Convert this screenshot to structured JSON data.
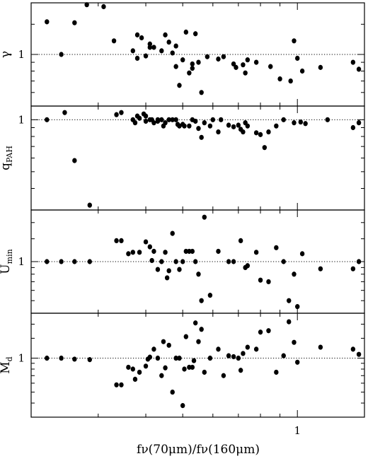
{
  "chart_data": {
    "type": "scatter",
    "x_scale": "log",
    "xlabel": "fν(70μm)/fν(160μm)",
    "xlim": [
      0.2,
      1.5
    ],
    "x_tick_labels": [
      {
        "value": 1,
        "label": "1"
      }
    ],
    "x_minor_ticks": [
      0.2,
      0.3,
      0.4,
      0.5,
      0.6,
      0.7,
      0.8,
      0.9,
      1,
      1.5
    ],
    "reference_line_y": 1,
    "panels": [
      {
        "id": "gamma",
        "ylabel": "γ",
        "ylabel_main": "γ",
        "ylabel_sub": "",
        "y_scale": "log",
        "ylim": [
          0.5,
          2.0
        ],
        "y_minor_ticks": [
          0.6,
          0.7,
          0.8,
          0.9,
          1.5
        ],
        "y_tick_labels": [
          {
            "value": 1,
            "label": "1"
          }
        ],
        "points": [
          [
            0.22,
            1.55
          ],
          [
            0.24,
            1.0
          ],
          [
            0.26,
            1.53
          ],
          [
            0.28,
            1.95
          ],
          [
            0.31,
            1.9
          ],
          [
            0.33,
            1.2
          ],
          [
            0.37,
            1.05
          ],
          [
            0.38,
            0.95
          ],
          [
            0.38,
            1.3
          ],
          [
            0.39,
            1.25
          ],
          [
            0.4,
            0.98
          ],
          [
            0.41,
            1.15
          ],
          [
            0.41,
            1.1
          ],
          [
            0.42,
            1.1
          ],
          [
            0.44,
            1.05
          ],
          [
            0.45,
            1.3
          ],
          [
            0.46,
            1.18
          ],
          [
            0.47,
            1.02
          ],
          [
            0.48,
            1.12
          ],
          [
            0.48,
            0.85
          ],
          [
            0.49,
            0.66
          ],
          [
            0.5,
            0.93
          ],
          [
            0.51,
            1.35
          ],
          [
            0.52,
            0.78
          ],
          [
            0.53,
            0.88
          ],
          [
            0.53,
            0.83
          ],
          [
            0.54,
            1.32
          ],
          [
            0.55,
            0.9
          ],
          [
            0.56,
            0.6
          ],
          [
            0.58,
            0.97
          ],
          [
            0.62,
            0.94
          ],
          [
            0.64,
            0.97
          ],
          [
            0.68,
            0.88
          ],
          [
            0.69,
            0.84
          ],
          [
            0.72,
            0.87
          ],
          [
            0.73,
            0.78
          ],
          [
            0.74,
            0.93
          ],
          [
            0.78,
            0.9
          ],
          [
            0.85,
            0.85
          ],
          [
            0.9,
            0.72
          ],
          [
            0.96,
            0.7
          ],
          [
            0.98,
            1.2
          ],
          [
            1.0,
            0.95
          ],
          [
            1.03,
            0.8
          ],
          [
            1.15,
            0.84
          ],
          [
            1.4,
            0.9
          ],
          [
            1.45,
            0.82
          ]
        ]
      },
      {
        "id": "qpah",
        "ylabel": "qPAH",
        "ylabel_main": "q",
        "ylabel_sub": "PAH",
        "y_scale": "log",
        "ylim": [
          0.3,
          1.2
        ],
        "y_minor_ticks": [
          0.4,
          0.5,
          0.6,
          0.7,
          0.8,
          0.9
        ],
        "y_tick_labels": [
          {
            "value": 1,
            "label": "1"
          }
        ],
        "points": [
          [
            0.22,
            1.0
          ],
          [
            0.245,
            1.1
          ],
          [
            0.26,
            0.58
          ],
          [
            0.285,
            0.32
          ],
          [
            0.335,
            1.07
          ],
          [
            0.345,
            1.1
          ],
          [
            0.37,
            1.0
          ],
          [
            0.375,
            0.96
          ],
          [
            0.38,
            1.05
          ],
          [
            0.385,
            1.02
          ],
          [
            0.395,
            1.08
          ],
          [
            0.4,
            1.05
          ],
          [
            0.4,
            0.98
          ],
          [
            0.41,
            1.0
          ],
          [
            0.415,
            1.0
          ],
          [
            0.42,
            0.96
          ],
          [
            0.43,
            1.0
          ],
          [
            0.43,
            0.98
          ],
          [
            0.44,
            1.0
          ],
          [
            0.445,
            0.92
          ],
          [
            0.45,
            0.96
          ],
          [
            0.46,
            1.0
          ],
          [
            0.47,
            1.0
          ],
          [
            0.48,
            1.0
          ],
          [
            0.485,
            0.94
          ],
          [
            0.49,
            0.92
          ],
          [
            0.5,
            0.94
          ],
          [
            0.505,
            0.92
          ],
          [
            0.52,
            0.92
          ],
          [
            0.53,
            1.0
          ],
          [
            0.54,
            0.98
          ],
          [
            0.55,
            0.89
          ],
          [
            0.56,
            0.79
          ],
          [
            0.57,
            0.96
          ],
          [
            0.59,
            0.92
          ],
          [
            0.6,
            1.0
          ],
          [
            0.62,
            0.85
          ],
          [
            0.63,
            1.0
          ],
          [
            0.66,
            0.93
          ],
          [
            0.68,
            0.91
          ],
          [
            0.7,
            0.93
          ],
          [
            0.71,
            0.88
          ],
          [
            0.72,
            0.85
          ],
          [
            0.73,
            0.96
          ],
          [
            0.74,
            0.92
          ],
          [
            0.78,
            0.84
          ],
          [
            0.8,
            0.82
          ],
          [
            0.82,
            0.69
          ],
          [
            0.84,
            0.85
          ],
          [
            0.88,
            0.92
          ],
          [
            0.92,
            1.0
          ],
          [
            0.98,
            0.96
          ],
          [
            1.02,
            0.97
          ],
          [
            1.05,
            0.95
          ],
          [
            1.2,
            1.0
          ],
          [
            1.4,
            0.9
          ],
          [
            1.45,
            0.96
          ]
        ]
      },
      {
        "id": "umin",
        "ylabel": "Umin",
        "ylabel_main": "U",
        "ylabel_sub": "min",
        "y_scale": "log",
        "ylim": [
          0.4,
          2.5
        ],
        "y_minor_ticks": [
          0.5,
          0.6,
          0.7,
          0.8,
          0.9,
          1.5,
          2
        ],
        "y_tick_labels": [
          {
            "value": 1,
            "label": "1"
          }
        ],
        "points": [
          [
            0.22,
            1.0
          ],
          [
            0.24,
            1.0
          ],
          [
            0.26,
            1.0
          ],
          [
            0.285,
            1.0
          ],
          [
            0.335,
            1.45
          ],
          [
            0.345,
            1.45
          ],
          [
            0.36,
            1.15
          ],
          [
            0.37,
            1.18
          ],
          [
            0.385,
            1.18
          ],
          [
            0.4,
            1.42
          ],
          [
            0.41,
            1.3
          ],
          [
            0.415,
            1.02
          ],
          [
            0.42,
            1.2
          ],
          [
            0.43,
            0.87
          ],
          [
            0.44,
            1.0
          ],
          [
            0.45,
            1.18
          ],
          [
            0.455,
            0.75
          ],
          [
            0.46,
            0.85
          ],
          [
            0.47,
            1.65
          ],
          [
            0.48,
            1.0
          ],
          [
            0.49,
            0.87
          ],
          [
            0.5,
            1.0
          ],
          [
            0.51,
            1.2
          ],
          [
            0.52,
            1.2
          ],
          [
            0.53,
            1.2
          ],
          [
            0.54,
            1.0
          ],
          [
            0.55,
            0.8
          ],
          [
            0.56,
            0.5
          ],
          [
            0.57,
            2.2
          ],
          [
            0.59,
            0.55
          ],
          [
            0.62,
            1.2
          ],
          [
            0.66,
            1.0
          ],
          [
            0.68,
            1.0
          ],
          [
            0.71,
            1.45
          ],
          [
            0.73,
            0.9
          ],
          [
            0.74,
            0.93
          ],
          [
            0.78,
            1.18
          ],
          [
            0.8,
            0.72
          ],
          [
            0.84,
            0.7
          ],
          [
            0.88,
            1.28
          ],
          [
            0.92,
            1.0
          ],
          [
            0.95,
            0.5
          ],
          [
            0.98,
            0.8
          ],
          [
            1.0,
            0.45
          ],
          [
            1.03,
            1.15
          ],
          [
            1.15,
            0.88
          ],
          [
            1.4,
            0.88
          ],
          [
            1.45,
            1.0
          ]
        ]
      },
      {
        "id": "md",
        "ylabel": "Md",
        "ylabel_main": "M",
        "ylabel_sub": "d",
        "y_scale": "log",
        "ylim": [
          0.3,
          2.5
        ],
        "y_minor_ticks": [
          0.4,
          0.5,
          0.6,
          0.7,
          0.8,
          0.9,
          1.5,
          2
        ],
        "y_tick_labels": [
          {
            "value": 1,
            "label": "1"
          }
        ],
        "points": [
          [
            0.22,
            1.0
          ],
          [
            0.24,
            1.0
          ],
          [
            0.26,
            0.98
          ],
          [
            0.285,
            0.97
          ],
          [
            0.335,
            0.58
          ],
          [
            0.345,
            0.58
          ],
          [
            0.36,
            0.83
          ],
          [
            0.37,
            0.8
          ],
          [
            0.375,
            0.65
          ],
          [
            0.385,
            0.75
          ],
          [
            0.4,
            0.85
          ],
          [
            0.405,
            0.98
          ],
          [
            0.41,
            1.02
          ],
          [
            0.42,
            1.2
          ],
          [
            0.43,
            1.0
          ],
          [
            0.44,
            0.7
          ],
          [
            0.445,
            1.4
          ],
          [
            0.45,
            0.82
          ],
          [
            0.46,
            1.3
          ],
          [
            0.47,
            0.5
          ],
          [
            0.48,
            1.0
          ],
          [
            0.49,
            1.0
          ],
          [
            0.5,
            0.38
          ],
          [
            0.505,
            0.8
          ],
          [
            0.51,
            1.55
          ],
          [
            0.52,
            0.83
          ],
          [
            0.53,
            0.83
          ],
          [
            0.535,
            0.95
          ],
          [
            0.54,
            2.05
          ],
          [
            0.55,
            1.4
          ],
          [
            0.56,
            1.8
          ],
          [
            0.57,
            0.75
          ],
          [
            0.59,
            1.0
          ],
          [
            0.62,
            1.2
          ],
          [
            0.64,
            0.7
          ],
          [
            0.66,
            1.05
          ],
          [
            0.68,
            1.03
          ],
          [
            0.7,
            1.0
          ],
          [
            0.71,
            0.78
          ],
          [
            0.72,
            1.1
          ],
          [
            0.74,
            1.25
          ],
          [
            0.78,
            1.2
          ],
          [
            0.8,
            1.7
          ],
          [
            0.84,
            1.75
          ],
          [
            0.88,
            0.75
          ],
          [
            0.92,
            1.05
          ],
          [
            0.95,
            2.1
          ],
          [
            0.98,
            1.38
          ],
          [
            1.0,
            0.92
          ],
          [
            1.15,
            1.25
          ],
          [
            1.4,
            1.2
          ],
          [
            1.45,
            1.08
          ]
        ]
      }
    ]
  }
}
